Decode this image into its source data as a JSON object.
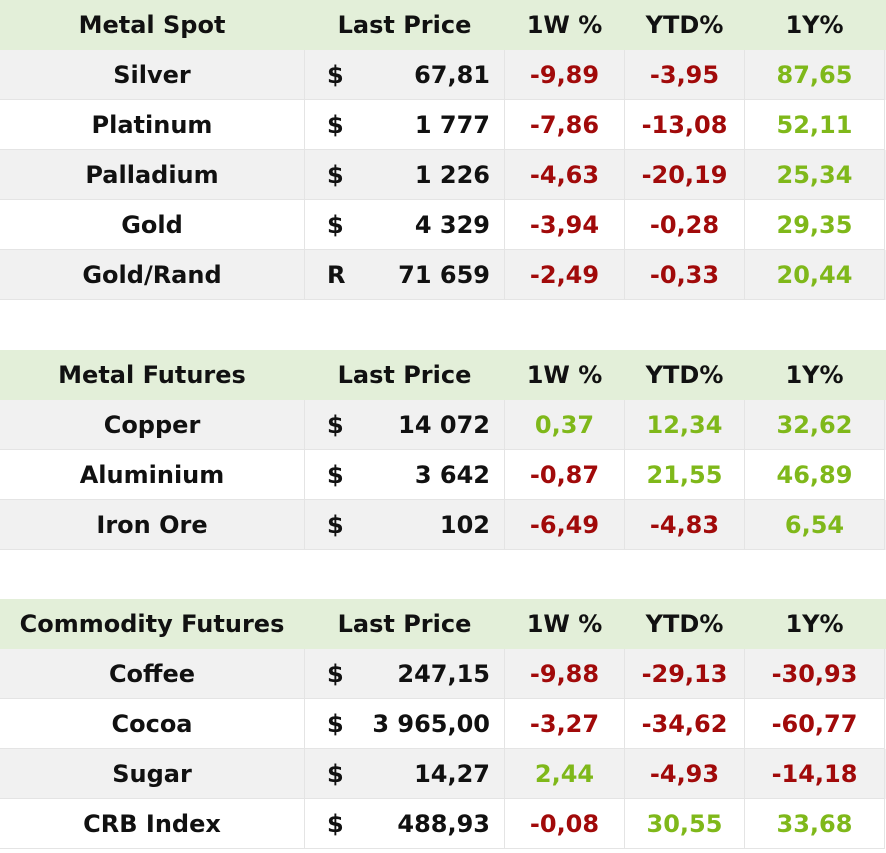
{
  "headers": {
    "last_price": "Last Price",
    "w1": "1W %",
    "ytd": "YTD%",
    "y1": "1Y%"
  },
  "sections": [
    {
      "title": "Metal Spot",
      "rows": [
        {
          "name": "Silver",
          "cur": "$",
          "price": "67,81",
          "w1": "-9,89",
          "ytd": "-3,95",
          "y1": "87,65"
        },
        {
          "name": "Platinum",
          "cur": "$",
          "price": "1 777",
          "w1": "-7,86",
          "ytd": "-13,08",
          "y1": "52,11"
        },
        {
          "name": "Palladium",
          "cur": "$",
          "price": "1 226",
          "w1": "-4,63",
          "ytd": "-20,19",
          "y1": "25,34"
        },
        {
          "name": "Gold",
          "cur": "$",
          "price": "4 329",
          "w1": "-3,94",
          "ytd": "-0,28",
          "y1": "29,35"
        },
        {
          "name": "Gold/Rand",
          "cur": "R",
          "price": "71 659",
          "w1": "-2,49",
          "ytd": "-0,33",
          "y1": "20,44"
        }
      ]
    },
    {
      "title": "Metal Futures",
      "rows": [
        {
          "name": "Copper",
          "cur": "$",
          "price": "14 072",
          "w1": "0,37",
          "ytd": "12,34",
          "y1": "32,62"
        },
        {
          "name": "Aluminium",
          "cur": "$",
          "price": "3 642",
          "w1": "-0,87",
          "ytd": "21,55",
          "y1": "46,89"
        },
        {
          "name": "Iron Ore",
          "cur": "$",
          "price": "102",
          "w1": "-6,49",
          "ytd": "-4,83",
          "y1": "6,54"
        }
      ]
    },
    {
      "title": "Commodity Futures",
      "rows": [
        {
          "name": "Coffee",
          "cur": "$",
          "price": "247,15",
          "w1": "-9,88",
          "ytd": "-29,13",
          "y1": "-30,93"
        },
        {
          "name": "Cocoa",
          "cur": "$",
          "price": "3 965,00",
          "w1": "-3,27",
          "ytd": "-34,62",
          "y1": "-60,77"
        },
        {
          "name": "Sugar",
          "cur": "$",
          "price": "14,27",
          "w1": "2,44",
          "ytd": "-4,93",
          "y1": "-14,18"
        },
        {
          "name": "CRB Index",
          "cur": "$",
          "price": "488,93",
          "w1": "-0,08",
          "ytd": "30,55",
          "y1": "33,68"
        }
      ]
    }
  ],
  "colors": {
    "header_bg": "#e3efd9",
    "negative": "#a10a0a",
    "positive": "#7fb81a",
    "zebra": "#f1f1f1"
  }
}
